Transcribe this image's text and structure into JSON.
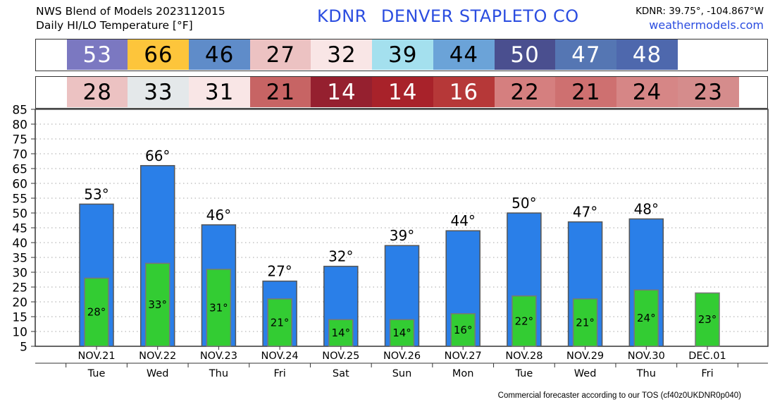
{
  "header": {
    "line1": "NWS Blend of Models 2023112015",
    "line2": "Daily HI/LO Temperature [°F]",
    "station_id": "KDNR",
    "station_name": "DENVER STAPLETO CO",
    "coords": "KDNR: 39.75°, -104.867°W",
    "site": "weathermodels.com"
  },
  "hi_strip": [
    {
      "text": "53",
      "bg": "#7b78c1",
      "fg": "#ffffff"
    },
    {
      "text": "66",
      "bg": "#fdc53b",
      "fg": "#000000"
    },
    {
      "text": "46",
      "bg": "#5f8cc9",
      "fg": "#000000"
    },
    {
      "text": "27",
      "bg": "#ecc2c2",
      "fg": "#000000"
    },
    {
      "text": "32",
      "bg": "#f9e6e6",
      "fg": "#000000"
    },
    {
      "text": "39",
      "bg": "#a4e0ee",
      "fg": "#000000"
    },
    {
      "text": "44",
      "bg": "#6ba3d8",
      "fg": "#000000"
    },
    {
      "text": "50",
      "bg": "#4a4f8f",
      "fg": "#ffffff"
    },
    {
      "text": "47",
      "bg": "#5576b3",
      "fg": "#ffffff"
    },
    {
      "text": "48",
      "bg": "#4e68ad",
      "fg": "#ffffff"
    }
  ],
  "lo_strip": [
    {
      "text": "28",
      "bg": "#ecc2c2",
      "fg": "#000000"
    },
    {
      "text": "33",
      "bg": "#e4e8ea",
      "fg": "#000000"
    },
    {
      "text": "31",
      "bg": "#f9e6e6",
      "fg": "#000000"
    },
    {
      "text": "21",
      "bg": "#c76464",
      "fg": "#000000"
    },
    {
      "text": "14",
      "bg": "#95202f",
      "fg": "#ffffff"
    },
    {
      "text": "14",
      "bg": "#a8222a",
      "fg": "#ffffff"
    },
    {
      "text": "16",
      "bg": "#b63838",
      "fg": "#ffffff"
    },
    {
      "text": "22",
      "bg": "#d57f7f",
      "fg": "#000000"
    },
    {
      "text": "21",
      "bg": "#ce7070",
      "fg": "#000000"
    },
    {
      "text": "24",
      "bg": "#d68686",
      "fg": "#000000"
    },
    {
      "text": "23",
      "bg": "#d58c8c",
      "fg": "#000000"
    }
  ],
  "chart_data": {
    "type": "bar",
    "categories": [
      "NOV.21",
      "NOV.22",
      "NOV.23",
      "NOV.24",
      "NOV.25",
      "NOV.26",
      "NOV.27",
      "NOV.28",
      "NOV.29",
      "NOV.30",
      "DEC.01"
    ],
    "weekdays": [
      "Tue",
      "Wed",
      "Thu",
      "Fri",
      "Sat",
      "Sun",
      "Mon",
      "Tue",
      "Wed",
      "Thu",
      "Fri"
    ],
    "series": [
      {
        "values": [
          53,
          66,
          46,
          27,
          32,
          39,
          44,
          50,
          47,
          48,
          null
        ],
        "labels": [
          "53°",
          "66°",
          "46°",
          "27°",
          "32°",
          "39°",
          "44°",
          "50°",
          "47°",
          "48°",
          ""
        ],
        "color": "#2a7fe8"
      },
      {
        "values": [
          28,
          33,
          31,
          21,
          14,
          14,
          16,
          22,
          21,
          24,
          23
        ],
        "labels": [
          "28°",
          "33°",
          "31°",
          "21°",
          "14°",
          "14°",
          "16°",
          "22°",
          "21°",
          "24°",
          "23°"
        ],
        "color": "#33cc33"
      }
    ],
    "yticks": [
      "5",
      "10",
      "15",
      "20",
      "25",
      "30",
      "35",
      "40",
      "45",
      "50",
      "55",
      "60",
      "65",
      "70",
      "75",
      "80",
      "85"
    ],
    "ylim": [
      5,
      85
    ],
    "grid": true
  },
  "footer": "Commercial forecaster according to our TOS (cf40z0UKDNR0p040)"
}
